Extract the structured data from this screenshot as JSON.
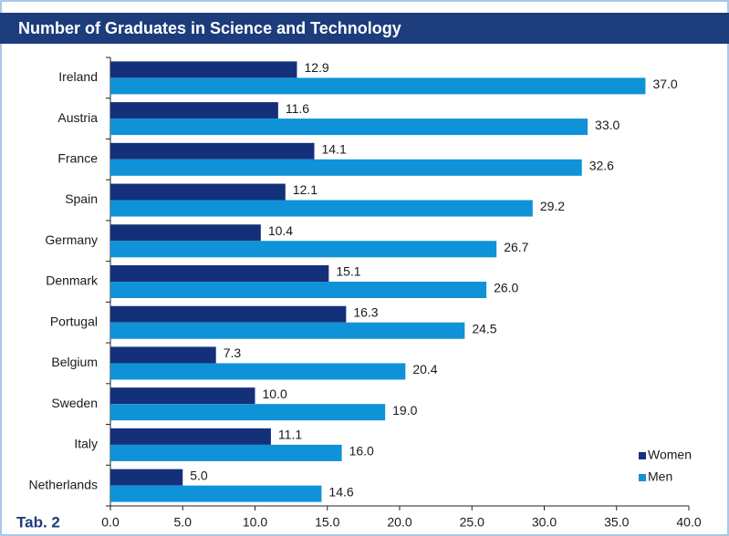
{
  "chart_data": {
    "type": "bar",
    "orientation": "horizontal",
    "title": "Number of Graduates in Science and Technology",
    "footnote": "Tab. 2",
    "categories": [
      "Ireland",
      "Austria",
      "France",
      "Spain",
      "Germany",
      "Denmark",
      "Portugal",
      "Belgium",
      "Sweden",
      "Italy",
      "Netherlands"
    ],
    "series": [
      {
        "name": "Women",
        "color": "#15307a",
        "values": [
          12.9,
          11.6,
          14.1,
          12.1,
          10.4,
          15.1,
          16.3,
          7.3,
          10.0,
          11.1,
          5.0
        ],
        "value_labels": [
          "12.9",
          "11.6",
          "14.1",
          "12.1",
          "10.4",
          "15.1",
          "16.3",
          "7.3",
          "10.0",
          "11.1",
          "5.0"
        ]
      },
      {
        "name": "Men",
        "color": "#0f92d8",
        "values": [
          37.0,
          33.0,
          32.6,
          29.2,
          26.7,
          26.0,
          24.5,
          20.4,
          19.0,
          16.0,
          14.6
        ],
        "value_labels": [
          "37.0",
          "33.0",
          "32.6",
          "29.2",
          "26.7",
          "26.0",
          "24.5",
          "20.4",
          "19.0",
          "16.0",
          "14.6"
        ]
      }
    ],
    "xlim": [
      0,
      40
    ],
    "xticks": [
      {
        "value": 0,
        "label": "0.0"
      },
      {
        "value": 5,
        "label": "5.0"
      },
      {
        "value": 10,
        "label": "10.0"
      },
      {
        "value": 15,
        "label": "15.0"
      },
      {
        "value": 20,
        "label": "20.0"
      },
      {
        "value": 25,
        "label": "25.0"
      },
      {
        "value": 30,
        "label": "30.0"
      },
      {
        "value": 35,
        "label": "35.0"
      },
      {
        "value": 40,
        "label": "40.0"
      }
    ],
    "grid": false,
    "legend": "lower right"
  }
}
